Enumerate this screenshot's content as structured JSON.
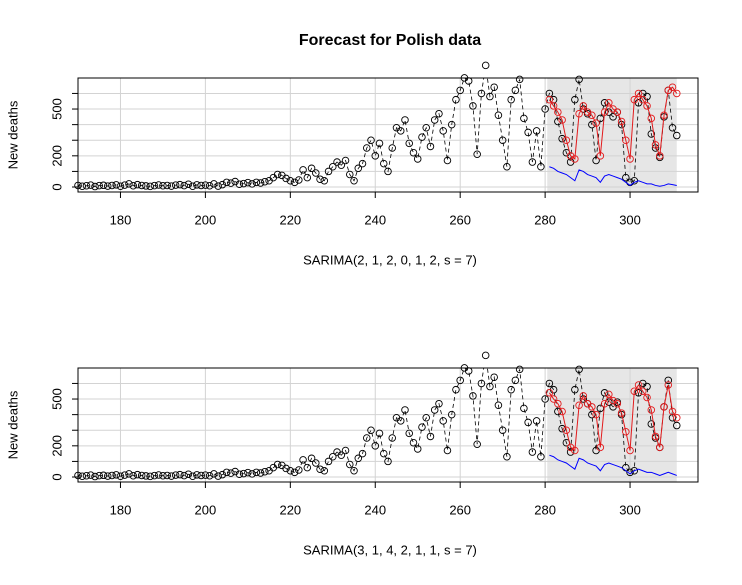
{
  "chart_data": [
    {
      "type": "forecast",
      "title": "Forecast for Polish data",
      "xlabel": "SARIMA(2, 1, 2, 0, 1, 2, s = 7)",
      "ylabel": "New deaths",
      "xlim": [
        170,
        316
      ],
      "ylim": [
        -32,
        699
      ],
      "xticks": [
        180,
        200,
        220,
        240,
        260,
        280,
        300
      ],
      "yticks": [
        0,
        200,
        500
      ],
      "y_minor_ticks": [
        100,
        300,
        400,
        600
      ],
      "grid": true,
      "forecast_region": [
        280.5,
        311
      ],
      "x": [
        170,
        171,
        172,
        173,
        174,
        175,
        176,
        177,
        178,
        179,
        180,
        181,
        182,
        183,
        184,
        185,
        186,
        187,
        188,
        189,
        190,
        191,
        192,
        193,
        194,
        195,
        196,
        197,
        198,
        199,
        200,
        201,
        202,
        203,
        204,
        205,
        206,
        207,
        208,
        209,
        210,
        211,
        212,
        213,
        214,
        215,
        216,
        217,
        218,
        219,
        220,
        221,
        222,
        223,
        224,
        225,
        226,
        227,
        228,
        229,
        230,
        231,
        232,
        233,
        234,
        235,
        236,
        237,
        238,
        239,
        240,
        241,
        242,
        243,
        244,
        245,
        246,
        247,
        248,
        249,
        250,
        251,
        252,
        253,
        254,
        255,
        256,
        257,
        258,
        259,
        260,
        261,
        262,
        263,
        264,
        265,
        266,
        267,
        268,
        269,
        270,
        271,
        272,
        273,
        274,
        275,
        276,
        277,
        278,
        279,
        280,
        281,
        282,
        283,
        284,
        285,
        286,
        287,
        288,
        289,
        290,
        291,
        292,
        293,
        294,
        295,
        296,
        297,
        298,
        299,
        300,
        301,
        302,
        303,
        304,
        305,
        306,
        307,
        308,
        309,
        310,
        311
      ],
      "series": [
        {
          "color": "#000000",
          "values": [
            10,
            5,
            8,
            12,
            3,
            9,
            11,
            6,
            10,
            14,
            5,
            12,
            20,
            8,
            15,
            10,
            7,
            4,
            9,
            13,
            8,
            10,
            6,
            12,
            15,
            9,
            18,
            5,
            14,
            10,
            12,
            8,
            20,
            6,
            15,
            30,
            25,
            35,
            18,
            22,
            28,
            20,
            30,
            26,
            34,
            40,
            60,
            80,
            75,
            55,
            40,
            30,
            45,
            110,
            60,
            120,
            90,
            50,
            40,
            100,
            130,
            160,
            140,
            170,
            80,
            40,
            120,
            150,
            250,
            300,
            200,
            280,
            150,
            100,
            250,
            380,
            360,
            430,
            280,
            220,
            180,
            320,
            380,
            260,
            430,
            470,
            360,
            170,
            400,
            560,
            620,
            700,
            680,
            520,
            210,
            600,
            780,
            580,
            640,
            460,
            300,
            130,
            560,
            620,
            690,
            440,
            350,
            160,
            360,
            130,
            500,
            600,
            560,
            420,
            310,
            220,
            160,
            560,
            690,
            500,
            470,
            400,
            170,
            440,
            540,
            480,
            450,
            480,
            400,
            60,
            30,
            40,
            540,
            600,
            580,
            340,
            250,
            190,
            450,
            620,
            380,
            330
          ]
        },
        {
          "color": "#e31a1c",
          "x": [
            281,
            282,
            283,
            284,
            285,
            286,
            287,
            288,
            289,
            290,
            291,
            292,
            293,
            294,
            295,
            296,
            297,
            298,
            299,
            300,
            301,
            302,
            303,
            304,
            305,
            306,
            307,
            308,
            309,
            310,
            311
          ],
          "values": [
            560,
            520,
            480,
            430,
            300,
            200,
            180,
            470,
            520,
            480,
            460,
            410,
            200,
            480,
            540,
            500,
            480,
            420,
            300,
            180,
            560,
            600,
            560,
            520,
            440,
            270,
            200,
            460,
            620,
            640,
            600
          ]
        },
        {
          "color": "#0000ff",
          "x": [
            281,
            282,
            283,
            284,
            285,
            286,
            287,
            288,
            289,
            290,
            291,
            292,
            293,
            294,
            295,
            296,
            297,
            298,
            299,
            300,
            301,
            302,
            303,
            304,
            305,
            306,
            307,
            308,
            309,
            310,
            311
          ],
          "values": [
            130,
            120,
            100,
            90,
            80,
            60,
            40,
            110,
            100,
            80,
            70,
            60,
            30,
            70,
            80,
            70,
            60,
            50,
            30,
            10,
            30,
            40,
            30,
            20,
            20,
            10,
            5,
            10,
            20,
            15,
            10
          ]
        }
      ]
    },
    {
      "type": "forecast",
      "xlabel": "SARIMA(3, 1, 4, 2, 1, 1, s = 7)",
      "ylabel": "New deaths",
      "xlim": [
        170,
        316
      ],
      "ylim": [
        -32,
        699
      ],
      "xticks": [
        180,
        200,
        220,
        240,
        260,
        280,
        300
      ],
      "yticks": [
        0,
        200,
        500
      ],
      "y_minor_ticks": [
        100,
        300,
        400,
        600
      ],
      "grid": true,
      "forecast_region": [
        280.5,
        311
      ],
      "x": [
        170,
        171,
        172,
        173,
        174,
        175,
        176,
        177,
        178,
        179,
        180,
        181,
        182,
        183,
        184,
        185,
        186,
        187,
        188,
        189,
        190,
        191,
        192,
        193,
        194,
        195,
        196,
        197,
        198,
        199,
        200,
        201,
        202,
        203,
        204,
        205,
        206,
        207,
        208,
        209,
        210,
        211,
        212,
        213,
        214,
        215,
        216,
        217,
        218,
        219,
        220,
        221,
        222,
        223,
        224,
        225,
        226,
        227,
        228,
        229,
        230,
        231,
        232,
        233,
        234,
        235,
        236,
        237,
        238,
        239,
        240,
        241,
        242,
        243,
        244,
        245,
        246,
        247,
        248,
        249,
        250,
        251,
        252,
        253,
        254,
        255,
        256,
        257,
        258,
        259,
        260,
        261,
        262,
        263,
        264,
        265,
        266,
        267,
        268,
        269,
        270,
        271,
        272,
        273,
        274,
        275,
        276,
        277,
        278,
        279,
        280,
        281,
        282,
        283,
        284,
        285,
        286,
        287,
        288,
        289,
        290,
        291,
        292,
        293,
        294,
        295,
        296,
        297,
        298,
        299,
        300,
        301,
        302,
        303,
        304,
        305,
        306,
        307,
        308,
        309,
        310,
        311
      ],
      "series": [
        {
          "color": "#000000",
          "values": [
            10,
            5,
            8,
            12,
            3,
            9,
            11,
            6,
            10,
            14,
            5,
            12,
            20,
            8,
            15,
            10,
            7,
            4,
            9,
            13,
            8,
            10,
            6,
            12,
            15,
            9,
            18,
            5,
            14,
            10,
            12,
            8,
            20,
            6,
            15,
            30,
            25,
            35,
            18,
            22,
            28,
            20,
            30,
            26,
            34,
            40,
            60,
            80,
            75,
            55,
            40,
            30,
            45,
            110,
            60,
            120,
            90,
            50,
            40,
            100,
            130,
            160,
            140,
            170,
            80,
            40,
            120,
            150,
            250,
            300,
            200,
            280,
            150,
            100,
            250,
            380,
            360,
            430,
            280,
            220,
            180,
            320,
            380,
            260,
            430,
            470,
            360,
            170,
            400,
            560,
            620,
            700,
            680,
            520,
            210,
            600,
            780,
            580,
            640,
            460,
            300,
            130,
            560,
            620,
            690,
            440,
            350,
            160,
            360,
            130,
            500,
            600,
            560,
            420,
            310,
            220,
            160,
            560,
            690,
            500,
            470,
            400,
            170,
            440,
            540,
            480,
            450,
            480,
            400,
            60,
            30,
            40,
            540,
            600,
            580,
            340,
            250,
            190,
            450,
            620,
            380,
            330
          ]
        },
        {
          "color": "#e31a1c",
          "x": [
            281,
            282,
            283,
            284,
            285,
            286,
            287,
            288,
            289,
            290,
            291,
            292,
            293,
            294,
            295,
            296,
            297,
            298,
            299,
            300,
            301,
            302,
            303,
            304,
            305,
            306,
            307,
            308,
            309,
            310,
            311
          ],
          "values": [
            540,
            500,
            470,
            420,
            300,
            190,
            170,
            460,
            520,
            470,
            450,
            400,
            190,
            470,
            530,
            490,
            470,
            410,
            290,
            170,
            550,
            590,
            550,
            510,
            430,
            260,
            190,
            450,
            590,
            420,
            380
          ]
        },
        {
          "color": "#0000ff",
          "x": [
            281,
            282,
            283,
            284,
            285,
            286,
            287,
            288,
            289,
            290,
            291,
            292,
            293,
            294,
            295,
            296,
            297,
            298,
            299,
            300,
            301,
            302,
            303,
            304,
            305,
            306,
            307,
            308,
            309,
            310,
            311
          ],
          "values": [
            140,
            130,
            110,
            100,
            90,
            70,
            50,
            120,
            110,
            90,
            80,
            70,
            40,
            80,
            90,
            80,
            70,
            60,
            40,
            20,
            40,
            50,
            40,
            30,
            30,
            20,
            10,
            20,
            30,
            20,
            10
          ]
        }
      ]
    }
  ]
}
